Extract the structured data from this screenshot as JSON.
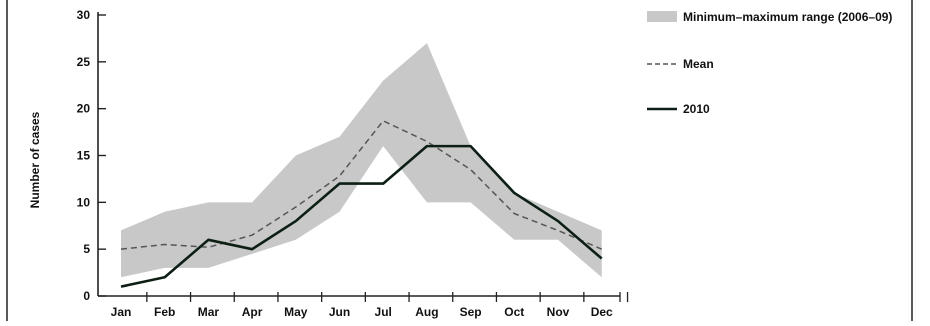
{
  "chart_data": {
    "type": "line",
    "categories": [
      "Jan",
      "Feb",
      "Mar",
      "Apr",
      "May",
      "Jun",
      "Jul",
      "Aug",
      "Sep",
      "Oct",
      "Nov",
      "Dec"
    ],
    "ylabel": "Number of cases",
    "xlabel": "",
    "ylim": [
      0,
      30
    ],
    "yticks": [
      "0",
      "5",
      "10",
      "15",
      "20",
      "25",
      "30"
    ],
    "grid": false,
    "legend_position": "top-right",
    "series": [
      {
        "name": "Minimum–maximum range (2006–09)",
        "kind": "range",
        "color": "#c8c8c8",
        "min": [
          2,
          3,
          3,
          4.5,
          6,
          9,
          16,
          10,
          10,
          6,
          6,
          2
        ],
        "max": [
          7,
          9,
          10,
          10,
          15,
          17,
          23,
          27,
          16,
          11,
          9,
          7
        ]
      },
      {
        "name": "Mean",
        "kind": "line",
        "style": "dashed",
        "color": "#555555",
        "values": [
          5,
          5.5,
          5.2,
          6.5,
          9.5,
          12.8,
          18.7,
          16.5,
          13.5,
          8.8,
          7,
          5
        ]
      },
      {
        "name": "2010",
        "kind": "line",
        "style": "solid",
        "color": "#0d1f14",
        "values": [
          1,
          2,
          6,
          5,
          8,
          12,
          12,
          16,
          16,
          11,
          8,
          4
        ]
      }
    ]
  }
}
